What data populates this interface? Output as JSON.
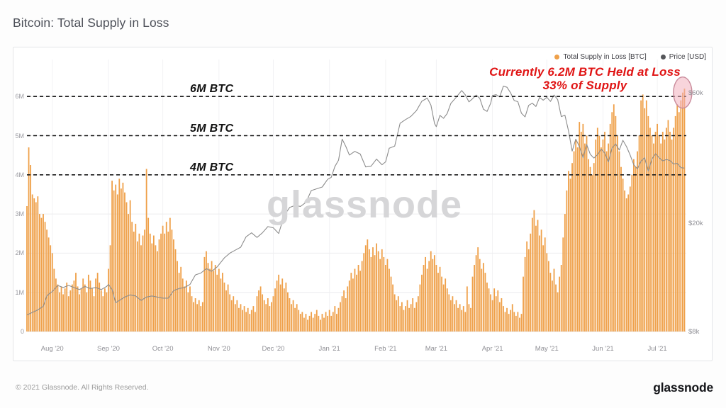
{
  "page": {
    "title": "Bitcoin: Total Supply in Loss"
  },
  "watermark": {
    "text": "glassnode"
  },
  "annotation": {
    "line1": "Currently 6.2M BTC Held at Loss",
    "line2": "33% of Supply",
    "color": "#e01414"
  },
  "footer": {
    "copyright": "© 2021 Glassnode. All Rights Reserved.",
    "logo_text": "glassnode"
  },
  "colors": {
    "bar": "#efa049",
    "price_line": "#8c8c8c",
    "reference_dash": "#1a1a1a",
    "legend_price_dot": "#55565a",
    "grid_h": "#ececee",
    "grid_v": "#f2f2f4",
    "baseline": "#e3e3e6",
    "highlight_fill": "rgba(243,176,190,0.55)",
    "highlight_stroke": "#c98b9b"
  },
  "chart_data": {
    "type": "bar+line",
    "title": "Bitcoin: Total Supply in Loss",
    "x_axis": {
      "start": "2020-07-18",
      "end": "2021-07-16",
      "ticks": [
        {
          "day": 14,
          "label": "Aug '20"
        },
        {
          "day": 45,
          "label": "Sep '20"
        },
        {
          "day": 75,
          "label": "Oct '20"
        },
        {
          "day": 106,
          "label": "Nov '20"
        },
        {
          "day": 136,
          "label": "Dec '20"
        },
        {
          "day": 167,
          "label": "Jan '21"
        },
        {
          "day": 198,
          "label": "Feb '21"
        },
        {
          "day": 226,
          "label": "Mar '21"
        },
        {
          "day": 257,
          "label": "Apr '21"
        },
        {
          "day": 287,
          "label": "May '21"
        },
        {
          "day": 318,
          "label": "Jun '21"
        },
        {
          "day": 348,
          "label": "Jul '21"
        }
      ]
    },
    "y_left": {
      "unit": "BTC",
      "range_m": [
        0,
        6.45
      ],
      "ticks": [
        {
          "value_m": 0,
          "label": "0"
        },
        {
          "value_m": 1,
          "label": "1M"
        },
        {
          "value_m": 2,
          "label": "2M"
        },
        {
          "value_m": 3,
          "label": "3M"
        },
        {
          "value_m": 4,
          "label": "4M"
        },
        {
          "value_m": 5,
          "label": "5M"
        },
        {
          "value_m": 6,
          "label": "6M"
        }
      ]
    },
    "y_right": {
      "unit": "USD",
      "scale": "log",
      "ticks": [
        {
          "usd_k": 60,
          "label": "$60k"
        },
        {
          "usd_k": 20,
          "label": "$20k"
        },
        {
          "usd_k": 8,
          "label": "$8k"
        }
      ]
    },
    "reference_lines": [
      {
        "value_m": 6,
        "label": "6M BTC"
      },
      {
        "value_m": 5,
        "label": "5M BTC"
      },
      {
        "value_m": 4,
        "label": "4M BTC"
      }
    ],
    "highlight": {
      "shape": "ellipse",
      "center_day": 362,
      "center_value_m": 6.1,
      "meaning": "current ~6.2M BTC held at loss"
    },
    "series": [
      {
        "name": "Total Supply in Loss [BTC]",
        "type": "bar",
        "axis": "left",
        "unit": "M BTC",
        "values_m_btc": [
          3.2,
          4.7,
          4.25,
          3.5,
          3.4,
          3.3,
          3.45,
          3.0,
          2.9,
          3.0,
          2.8,
          2.6,
          2.4,
          2.2,
          2.0,
          1.6,
          1.35,
          1.2,
          1.0,
          1.15,
          0.95,
          1.1,
          1.25,
          0.9,
          1.05,
          1.2,
          1.3,
          1.5,
          1.15,
          0.95,
          1.1,
          1.35,
          1.2,
          1.0,
          1.45,
          1.3,
          1.1,
          0.9,
          1.35,
          1.5,
          1.25,
          1.05,
          0.9,
          1.1,
          1.0,
          1.6,
          2.2,
          3.85,
          3.6,
          3.75,
          3.5,
          3.9,
          3.65,
          3.8,
          3.55,
          3.3,
          3.0,
          3.35,
          2.8,
          2.55,
          2.75,
          2.3,
          2.5,
          2.2,
          2.45,
          2.6,
          4.15,
          2.9,
          2.5,
          2.25,
          2.45,
          2.2,
          2.05,
          2.35,
          2.5,
          2.7,
          2.5,
          2.8,
          2.55,
          2.9,
          2.6,
          2.35,
          2.1,
          1.8,
          1.5,
          1.65,
          1.35,
          1.15,
          1.3,
          1.0,
          1.15,
          0.9,
          0.75,
          0.85,
          0.7,
          0.8,
          0.65,
          0.75,
          1.9,
          2.05,
          1.75,
          1.6,
          1.8,
          1.55,
          1.7,
          1.45,
          1.6,
          1.35,
          1.5,
          1.25,
          1.05,
          1.2,
          0.95,
          0.8,
          0.9,
          0.7,
          0.8,
          0.6,
          0.7,
          0.55,
          0.65,
          0.5,
          0.6,
          0.45,
          0.55,
          0.65,
          0.5,
          0.9,
          1.05,
          1.15,
          0.95,
          0.8,
          0.7,
          0.85,
          0.65,
          0.75,
          0.9,
          1.1,
          1.3,
          1.45,
          1.2,
          1.35,
          1.1,
          1.25,
          1.0,
          0.85,
          0.7,
          0.8,
          0.6,
          0.7,
          0.55,
          0.45,
          0.5,
          0.35,
          0.45,
          0.3,
          0.4,
          0.5,
          0.35,
          0.45,
          0.55,
          0.4,
          0.3,
          0.45,
          0.35,
          0.5,
          0.4,
          0.55,
          0.4,
          0.5,
          0.65,
          0.45,
          0.6,
          0.75,
          0.9,
          1.05,
          0.85,
          1.15,
          1.3,
          1.5,
          1.35,
          1.6,
          1.45,
          1.7,
          1.55,
          1.8,
          2.0,
          2.2,
          2.35,
          2.1,
          1.9,
          2.15,
          1.95,
          2.25,
          2.05,
          1.85,
          2.1,
          1.9,
          1.7,
          1.85,
          1.6,
          1.4,
          1.2,
          0.95,
          0.8,
          0.9,
          0.65,
          0.75,
          0.55,
          0.65,
          0.8,
          0.6,
          0.7,
          0.85,
          0.6,
          0.75,
          0.9,
          1.2,
          1.45,
          1.7,
          1.9,
          1.6,
          1.8,
          2.05,
          1.85,
          1.95,
          1.7,
          1.5,
          1.65,
          1.4,
          1.2,
          1.35,
          1.1,
          0.95,
          0.8,
          0.9,
          0.7,
          0.8,
          0.6,
          0.7,
          0.55,
          0.65,
          0.5,
          1.15,
          0.7,
          0.6,
          1.4,
          1.7,
          1.95,
          2.15,
          1.85,
          1.6,
          1.75,
          1.5,
          1.25,
          1.1,
          0.95,
          0.8,
          1.1,
          0.9,
          1.05,
          0.75,
          0.85,
          0.65,
          0.5,
          0.6,
          0.45,
          0.55,
          0.7,
          0.5,
          0.4,
          0.5,
          0.35,
          0.45,
          1.4,
          1.9,
          2.3,
          2.1,
          2.5,
          2.9,
          3.1,
          2.7,
          2.85,
          2.45,
          2.6,
          2.2,
          2.4,
          2.0,
          1.8,
          1.5,
          1.3,
          1.6,
          1.2,
          1.0,
          1.4,
          1.7,
          2.4,
          3.0,
          3.6,
          4.1,
          3.9,
          4.3,
          4.6,
          4.9,
          4.7,
          5.35,
          5.1,
          5.3,
          4.8,
          5.0,
          4.4,
          4.2,
          4.0,
          4.3,
          4.9,
          5.2,
          5.0,
          4.7,
          4.9,
          5.1,
          4.6,
          4.8,
          5.3,
          5.6,
          5.8,
          5.5,
          5.0,
          4.6,
          4.2,
          3.9,
          3.6,
          3.4,
          3.5,
          3.7,
          4.0,
          4.4,
          4.2,
          4.6,
          5.0,
          5.9,
          6.05,
          5.7,
          5.9,
          5.5,
          5.2,
          5.0,
          4.8,
          5.1,
          5.3,
          5.0,
          4.8,
          5.1,
          4.9,
          5.2,
          5.4,
          5.1,
          4.9,
          5.2,
          5.5,
          5.8,
          5.6,
          5.9,
          6.1,
          6.2
        ]
      },
      {
        "name": "Price [USD]",
        "type": "line",
        "axis": "right",
        "unit": "USD (thousands)",
        "points_day_usd_k": [
          [
            0,
            9.2
          ],
          [
            3,
            9.4
          ],
          [
            6,
            9.6
          ],
          [
            9,
            9.9
          ],
          [
            11,
            10.8
          ],
          [
            13,
            11.1
          ],
          [
            14,
            11.2
          ],
          [
            17,
            11.8
          ],
          [
            20,
            11.6
          ],
          [
            23,
            11.8
          ],
          [
            26,
            11.6
          ],
          [
            29,
            11.4
          ],
          [
            32,
            11.7
          ],
          [
            35,
            11.5
          ],
          [
            38,
            11.6
          ],
          [
            41,
            11.4
          ],
          [
            44,
            11.7
          ],
          [
            45,
            11.9
          ],
          [
            47,
            11.4
          ],
          [
            49,
            10.2
          ],
          [
            51,
            10.4
          ],
          [
            54,
            10.7
          ],
          [
            57,
            10.9
          ],
          [
            60,
            10.8
          ],
          [
            63,
            10.4
          ],
          [
            66,
            10.7
          ],
          [
            69,
            10.8
          ],
          [
            72,
            10.7
          ],
          [
            75,
            10.6
          ],
          [
            78,
            10.6
          ],
          [
            81,
            11.3
          ],
          [
            84,
            11.5
          ],
          [
            87,
            11.6
          ],
          [
            90,
            11.9
          ],
          [
            93,
            12.9
          ],
          [
            96,
            13.1
          ],
          [
            99,
            13.6
          ],
          [
            102,
            13.3
          ],
          [
            105,
            13.8
          ],
          [
            109,
            14.9
          ],
          [
            112,
            15.5
          ],
          [
            115,
            15.9
          ],
          [
            118,
            16.3
          ],
          [
            121,
            17.8
          ],
          [
            124,
            18.4
          ],
          [
            127,
            17.7
          ],
          [
            130,
            18.4
          ],
          [
            133,
            19.4
          ],
          [
            136,
            19.2
          ],
          [
            139,
            18.3
          ],
          [
            142,
            21.3
          ],
          [
            145,
            22.8
          ],
          [
            148,
            23.2
          ],
          [
            151,
            23.0
          ],
          [
            154,
            23.8
          ],
          [
            157,
            26.3
          ],
          [
            160,
            26.7
          ],
          [
            163,
            27.1
          ],
          [
            166,
            28.9
          ],
          [
            168,
            29.4
          ],
          [
            170,
            32.2
          ],
          [
            172,
            34.0
          ],
          [
            174,
            40.6
          ],
          [
            176,
            38.2
          ],
          [
            178,
            35.5
          ],
          [
            181,
            36.6
          ],
          [
            184,
            35.8
          ],
          [
            187,
            32.1
          ],
          [
            190,
            32.3
          ],
          [
            193,
            34.3
          ],
          [
            196,
            32.7
          ],
          [
            198,
            33.5
          ],
          [
            200,
            37.6
          ],
          [
            203,
            38.3
          ],
          [
            206,
            46.4
          ],
          [
            209,
            47.9
          ],
          [
            212,
            49.2
          ],
          [
            215,
            51.6
          ],
          [
            218,
            55.9
          ],
          [
            221,
            57.4
          ],
          [
            223,
            54.1
          ],
          [
            225,
            46.3
          ],
          [
            226,
            45.1
          ],
          [
            228,
            49.6
          ],
          [
            230,
            48.4
          ],
          [
            232,
            50.4
          ],
          [
            234,
            54.9
          ],
          [
            237,
            57.8
          ],
          [
            240,
            61.2
          ],
          [
            242,
            59.0
          ],
          [
            244,
            55.6
          ],
          [
            246,
            57.1
          ],
          [
            248,
            58.9
          ],
          [
            250,
            57.3
          ],
          [
            252,
            52.3
          ],
          [
            254,
            51.3
          ],
          [
            256,
            55.0
          ],
          [
            257,
            58.7
          ],
          [
            259,
            59.1
          ],
          [
            261,
            58.0
          ],
          [
            263,
            63.5
          ],
          [
            265,
            62.9
          ],
          [
            267,
            60.0
          ],
          [
            269,
            56.2
          ],
          [
            271,
            55.7
          ],
          [
            273,
            50.5
          ],
          [
            275,
            49.0
          ],
          [
            277,
            54.0
          ],
          [
            279,
            55.0
          ],
          [
            281,
            53.5
          ],
          [
            283,
            57.7
          ],
          [
            285,
            56.4
          ],
          [
            287,
            57.8
          ],
          [
            289,
            55.8
          ],
          [
            291,
            58.9
          ],
          [
            293,
            56.7
          ],
          [
            295,
            49.1
          ],
          [
            297,
            49.7
          ],
          [
            299,
            43.5
          ],
          [
            301,
            36.7
          ],
          [
            303,
            40.6
          ],
          [
            305,
            38.1
          ],
          [
            307,
            34.7
          ],
          [
            309,
            38.8
          ],
          [
            311,
            35.7
          ],
          [
            313,
            34.6
          ],
          [
            315,
            35.6
          ],
          [
            317,
            37.3
          ],
          [
            319,
            36.1
          ],
          [
            321,
            33.5
          ],
          [
            323,
            37.6
          ],
          [
            325,
            39.0
          ],
          [
            327,
            37.0
          ],
          [
            329,
            40.2
          ],
          [
            331,
            38.1
          ],
          [
            333,
            35.5
          ],
          [
            335,
            32.7
          ],
          [
            337,
            31.6
          ],
          [
            339,
            33.7
          ],
          [
            341,
            34.7
          ],
          [
            343,
            31.0
          ],
          [
            345,
            34.3
          ],
          [
            347,
            35.9
          ],
          [
            349,
            34.7
          ],
          [
            351,
            33.8
          ],
          [
            353,
            34.2
          ],
          [
            355,
            33.9
          ],
          [
            357,
            32.9
          ],
          [
            359,
            33.1
          ],
          [
            361,
            31.9
          ],
          [
            363,
            31.8
          ]
        ]
      }
    ]
  }
}
